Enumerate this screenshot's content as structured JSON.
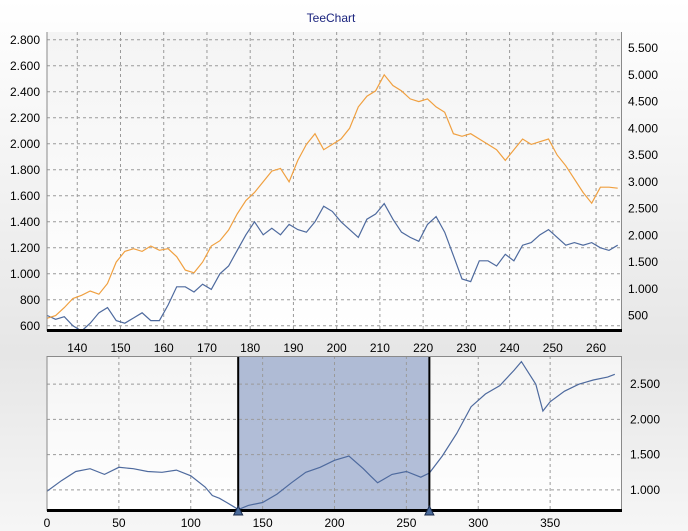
{
  "title": "TeeChart",
  "colors": {
    "blue_series": "#4e6a9e",
    "orange_series": "#f0a040",
    "selection_fill": "#8194c0",
    "title_color": "#1a237e"
  },
  "chart_data": [
    {
      "type": "line",
      "title": "TeeChart",
      "xlabel": "",
      "ylabel": "",
      "xlim": [
        133,
        266
      ],
      "ylim_left": [
        560,
        2860
      ],
      "ylim_right": [
        212,
        5800
      ],
      "grid": true,
      "x_ticks": [
        "140",
        "150",
        "160",
        "170",
        "180",
        "190",
        "200",
        "210",
        "220",
        "230",
        "240",
        "250",
        "260"
      ],
      "y_ticks_left": [
        "600",
        "800",
        "1.000",
        "1.200",
        "1.400",
        "1.600",
        "1.800",
        "2.000",
        "2.200",
        "2.400",
        "2.600",
        "2.800"
      ],
      "y_ticks_right": [
        "500",
        "1.000",
        "1.500",
        "2.000",
        "2.500",
        "3.000",
        "3.500",
        "4.000",
        "4.500",
        "5.000",
        "5.500"
      ],
      "series": [
        {
          "axis": "left",
          "color": "#4e6a9e",
          "x": [
            133,
            135,
            137,
            139,
            141,
            143,
            145,
            147,
            149,
            151,
            153,
            155,
            157,
            159,
            161,
            163,
            165,
            167,
            169,
            171,
            173,
            175,
            177,
            179,
            181,
            183,
            185,
            187,
            189,
            191,
            193,
            195,
            197,
            199,
            201,
            203,
            205,
            207,
            209,
            211,
            213,
            215,
            217,
            219,
            221,
            223,
            225,
            227,
            229,
            231,
            233,
            235,
            237,
            239,
            241,
            243,
            245,
            247,
            249,
            251,
            253,
            255,
            257,
            259,
            261,
            263,
            265
          ],
          "y": [
            680,
            650,
            670,
            600,
            560,
            620,
            700,
            740,
            640,
            620,
            660,
            700,
            640,
            640,
            760,
            900,
            900,
            860,
            920,
            880,
            1000,
            1060,
            1180,
            1300,
            1400,
            1300,
            1350,
            1300,
            1380,
            1340,
            1320,
            1400,
            1520,
            1480,
            1400,
            1340,
            1280,
            1420,
            1460,
            1540,
            1420,
            1320,
            1280,
            1250,
            1380,
            1440,
            1320,
            1140,
            960,
            940,
            1100,
            1100,
            1060,
            1150,
            1100,
            1220,
            1240,
            1300,
            1340,
            1280,
            1220,
            1240,
            1220,
            1240,
            1200,
            1180,
            1220
          ]
        },
        {
          "axis": "right",
          "color": "#f0a040",
          "x": [
            133,
            135,
            137,
            139,
            141,
            143,
            145,
            147,
            149,
            151,
            153,
            155,
            157,
            159,
            161,
            163,
            165,
            167,
            169,
            171,
            173,
            175,
            177,
            179,
            181,
            183,
            185,
            187,
            189,
            191,
            193,
            195,
            197,
            199,
            201,
            203,
            205,
            207,
            209,
            211,
            213,
            215,
            217,
            219,
            221,
            223,
            225,
            227,
            229,
            231,
            233,
            235,
            237,
            239,
            241,
            243,
            245,
            247,
            249,
            251,
            253,
            255,
            257,
            259,
            261,
            263,
            265
          ],
          "y": [
            450,
            500,
            650,
            820,
            880,
            960,
            900,
            1100,
            1500,
            1700,
            1750,
            1700,
            1800,
            1720,
            1750,
            1600,
            1350,
            1300,
            1500,
            1800,
            1900,
            2100,
            2400,
            2650,
            2800,
            3000,
            3200,
            3250,
            3000,
            3400,
            3700,
            3900,
            3600,
            3700,
            3800,
            4000,
            4400,
            4600,
            4700,
            5000,
            4800,
            4700,
            4550,
            4500,
            4550,
            4400,
            4300,
            3900,
            3850,
            3900,
            3800,
            3700,
            3600,
            3400,
            3600,
            3800,
            3700,
            3750,
            3800,
            3500,
            3300,
            3050,
            2800,
            2600,
            2900,
            2900,
            2880
          ]
        }
      ]
    },
    {
      "type": "line",
      "title": "",
      "xlabel": "",
      "ylabel": "",
      "xlim": [
        0,
        400
      ],
      "ylim": [
        700,
        2900
      ],
      "grid": true,
      "x_ticks": [
        "0",
        "50",
        "100",
        "150",
        "200",
        "250",
        "300",
        "350"
      ],
      "y_ticks": [
        "1.000",
        "1.500",
        "2.000",
        "2.500"
      ],
      "selection": [
        133,
        266
      ],
      "series": [
        {
          "color": "#4e6a9e",
          "x": [
            0,
            10,
            20,
            30,
            40,
            50,
            60,
            70,
            80,
            90,
            100,
            110,
            115,
            120,
            125,
            130,
            133,
            140,
            150,
            160,
            170,
            180,
            190,
            200,
            210,
            220,
            225,
            230,
            240,
            250,
            260,
            266,
            275,
            285,
            295,
            305,
            315,
            325,
            330,
            340,
            345,
            350,
            360,
            370,
            380,
            390,
            395
          ],
          "y": [
            980,
            1130,
            1260,
            1300,
            1220,
            1320,
            1300,
            1260,
            1250,
            1280,
            1200,
            1040,
            920,
            880,
            820,
            760,
            720,
            780,
            820,
            940,
            1100,
            1250,
            1320,
            1420,
            1480,
            1300,
            1200,
            1100,
            1220,
            1260,
            1180,
            1240,
            1480,
            1800,
            2180,
            2360,
            2480,
            2700,
            2820,
            2500,
            2120,
            2250,
            2400,
            2500,
            2560,
            2600,
            2640
          ]
        }
      ]
    }
  ]
}
